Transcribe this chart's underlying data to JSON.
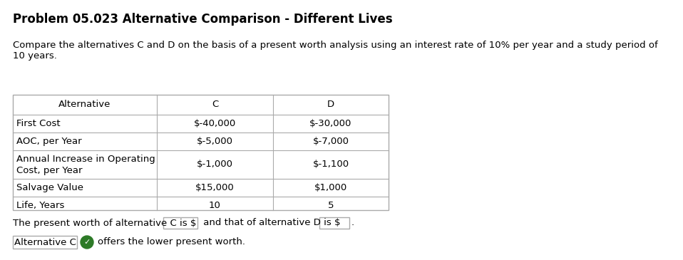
{
  "title": "Problem 05.023 Alternative Comparison - Different Lives",
  "description_line1": "Compare the alternatives C and D on the basis of a present worth analysis using an interest rate of 10% per year and a study period of",
  "description_line2": "10 years.",
  "table_headers": [
    "Alternative",
    "C",
    "D"
  ],
  "table_rows": [
    [
      "First Cost",
      "$-40,000",
      "$-30,000"
    ],
    [
      "AOC, per Year",
      "$-5,000",
      "$-7,000"
    ],
    [
      "Annual Increase in Operating\nCost, per Year",
      "$-1,000",
      "$-1,100"
    ],
    [
      "Salvage Value",
      "$15,000",
      "$1,000"
    ],
    [
      "Life, Years",
      "10",
      "5"
    ]
  ],
  "bottom_text_part1": "The present worth of alternative C is $",
  "bottom_text_part2": "and that of alternative D is $",
  "bottom_text_end": ".",
  "conclusion_label": "Alternative C",
  "conclusion_text": "offers the lower present worth.",
  "bg_color": "#ffffff",
  "text_color": "#000000",
  "border_color": "#aaaaaa",
  "title_fontsize": 12,
  "body_fontsize": 9.5,
  "table_fontsize": 9.5
}
